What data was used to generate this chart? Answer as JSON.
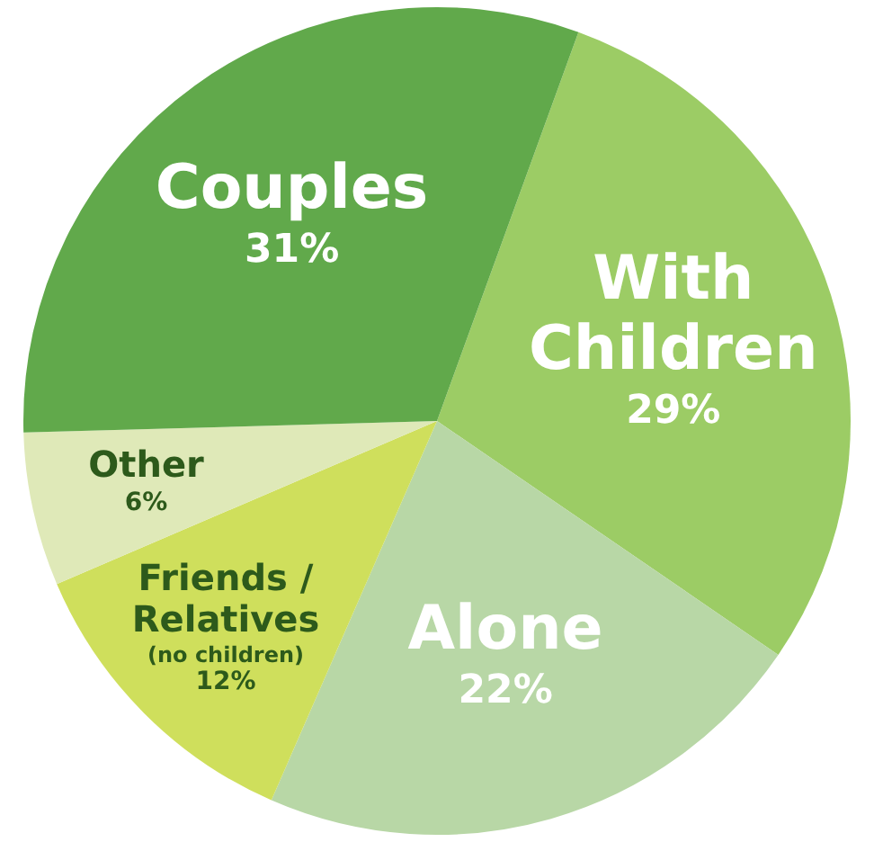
{
  "chart_data": {
    "type": "pie",
    "categories": [
      "With Children",
      "Alone",
      "Friends / Relatives (no children)",
      "Other",
      "Couples"
    ],
    "values": [
      29,
      22,
      12,
      6,
      31
    ],
    "value_labels": [
      "29%",
      "22%",
      "12%",
      "6%",
      "31%"
    ],
    "colors": [
      "#9ccc65",
      "#b8d7a6",
      "#cfdf5c",
      "#dfe9b8",
      "#61a94b"
    ],
    "legend": false
  }
}
